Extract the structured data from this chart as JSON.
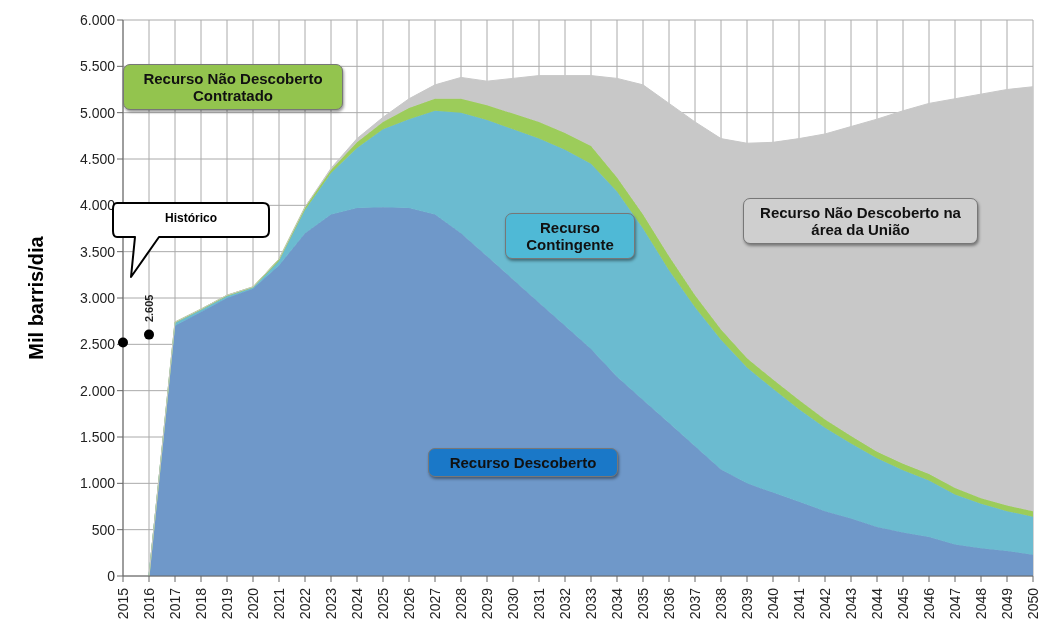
{
  "chart_data": {
    "type": "area",
    "stacked": true,
    "ylabel": "Mil  barris/dia",
    "categories": [
      "2015",
      "2016",
      "2017",
      "2018",
      "2019",
      "2020",
      "2021",
      "2022",
      "2023",
      "2024",
      "2025",
      "2026",
      "2027",
      "2028",
      "2029",
      "2030",
      "2031",
      "2032",
      "2033",
      "2034",
      "2035",
      "2036",
      "2037",
      "2038",
      "2039",
      "2040",
      "2041",
      "2042",
      "2043",
      "2044",
      "2045",
      "2046",
      "2047",
      "2048",
      "2049",
      "2050"
    ],
    "series": [
      {
        "name": "Recurso Descoberto",
        "color": "#6f98c9",
        "values": [
          null,
          0,
          2700,
          2850,
          3000,
          3100,
          3350,
          3700,
          3900,
          3970,
          3980,
          3970,
          3900,
          3700,
          3450,
          3200,
          2950,
          2700,
          2450,
          2150,
          1900,
          1650,
          1400,
          1150,
          1000,
          900,
          800,
          700,
          620,
          530,
          470,
          420,
          340,
          300,
          270,
          230
        ]
      },
      {
        "name": "Recurso Contingente",
        "color": "#6bbbd0",
        "values": [
          null,
          0,
          30,
          20,
          20,
          10,
          50,
          250,
          450,
          650,
          840,
          960,
          1120,
          1300,
          1470,
          1620,
          1770,
          1900,
          2000,
          2000,
          1850,
          1650,
          1500,
          1400,
          1250,
          1120,
          1000,
          900,
          810,
          740,
          670,
          610,
          540,
          480,
          430,
          410
        ]
      },
      {
        "name": "Recurso Não Descoberto Contratado",
        "color": "#9ccc5a",
        "values": [
          null,
          0,
          10,
          10,
          10,
          10,
          20,
          30,
          30,
          60,
          80,
          120,
          130,
          150,
          160,
          170,
          180,
          180,
          190,
          150,
          150,
          150,
          130,
          110,
          100,
          100,
          100,
          90,
          80,
          70,
          70,
          70,
          70,
          60,
          60,
          60
        ]
      },
      {
        "name": "Recurso Não Descoberto na área da União",
        "color": "#c8c8c8",
        "values": [
          null,
          0,
          0,
          0,
          0,
          0,
          0,
          0,
          20,
          40,
          50,
          100,
          150,
          230,
          260,
          380,
          500,
          620,
          760,
          1070,
          1400,
          1650,
          1870,
          2060,
          2320,
          2560,
          2820,
          3080,
          3340,
          3590,
          3810,
          4000,
          4200,
          4360,
          4490,
          4580
        ]
      },
      {
        "type": "scatter",
        "color": "#000000",
        "marker": "circle",
        "values": [
          2520,
          2605,
          null,
          null,
          null,
          null,
          null,
          null,
          null,
          null,
          null,
          null,
          null,
          null,
          null,
          null,
          null,
          null,
          null,
          null,
          null,
          null,
          null,
          null,
          null,
          null,
          null,
          null,
          null,
          null,
          null,
          null,
          null,
          null,
          null,
          null
        ],
        "value_labels": [
          null,
          "2.605",
          null,
          null,
          null,
          null,
          null,
          null,
          null,
          null,
          null,
          null,
          null,
          null,
          null,
          null,
          null,
          null,
          null,
          null,
          null,
          null,
          null,
          null,
          null,
          null,
          null,
          null,
          null,
          null,
          null,
          null,
          null,
          null,
          null,
          null
        ]
      }
    ],
    "ylim": [
      0,
      6000
    ],
    "yticks": [
      {
        "value": 0,
        "label": "0"
      },
      {
        "value": 500,
        "label": "500"
      },
      {
        "value": 1000,
        "label": "1.000"
      },
      {
        "value": 1500,
        "label": "1.500"
      },
      {
        "value": 2000,
        "label": "2.000"
      },
      {
        "value": 2500,
        "label": "2.500"
      },
      {
        "value": 3000,
        "label": "3.000"
      },
      {
        "value": 3500,
        "label": "3.500"
      },
      {
        "value": 4000,
        "label": "4.000"
      },
      {
        "value": 4500,
        "label": "4.500"
      },
      {
        "value": 5000,
        "label": "5.000"
      },
      {
        "value": 5500,
        "label": "5.500"
      },
      {
        "value": 6000,
        "label": "6.000"
      }
    ],
    "grid": true,
    "legend": false,
    "annotations": [
      "Histórico"
    ]
  }
}
